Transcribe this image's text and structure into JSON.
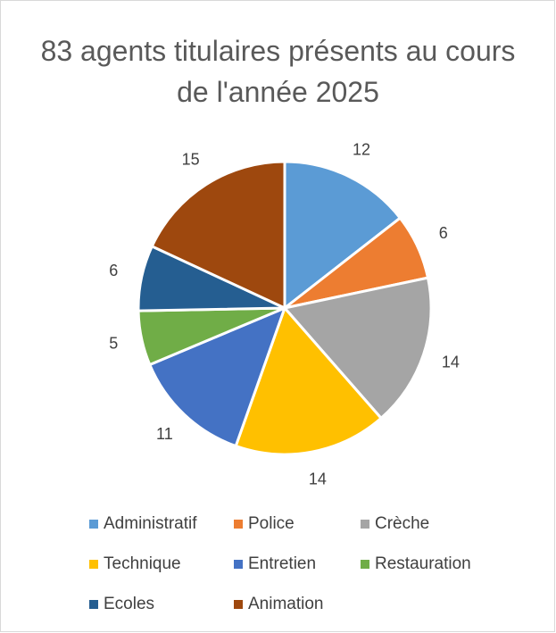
{
  "chart_data": {
    "type": "pie",
    "title": "83 agents titulaires présents au cours de l'année 2025",
    "categories": [
      "Administratif",
      "Police",
      "Crèche",
      "Technique",
      "Entretien",
      "Restauration",
      "Ecoles",
      "Animation"
    ],
    "values": [
      12,
      6,
      14,
      14,
      11,
      5,
      6,
      15
    ],
    "colors": [
      "#5b9bd5",
      "#ed7d31",
      "#a5a5a5",
      "#ffc000",
      "#4472c4",
      "#70ad47",
      "#255e91",
      "#9e480e"
    ],
    "legend": "bottom"
  }
}
